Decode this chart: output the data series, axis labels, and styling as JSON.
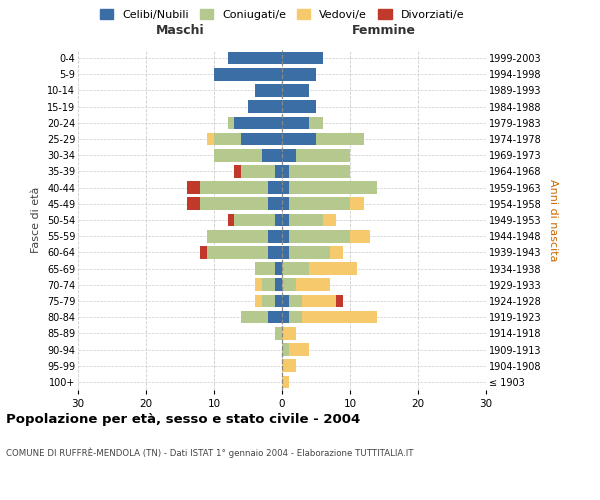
{
  "age_groups": [
    "100+",
    "95-99",
    "90-94",
    "85-89",
    "80-84",
    "75-79",
    "70-74",
    "65-69",
    "60-64",
    "55-59",
    "50-54",
    "45-49",
    "40-44",
    "35-39",
    "30-34",
    "25-29",
    "20-24",
    "15-19",
    "10-14",
    "5-9",
    "0-4"
  ],
  "birth_years": [
    "≤ 1903",
    "1904-1908",
    "1909-1913",
    "1914-1918",
    "1919-1923",
    "1924-1928",
    "1929-1933",
    "1934-1938",
    "1939-1943",
    "1944-1948",
    "1949-1953",
    "1954-1958",
    "1959-1963",
    "1964-1968",
    "1969-1973",
    "1974-1978",
    "1979-1983",
    "1984-1988",
    "1989-1993",
    "1994-1998",
    "1999-2003"
  ],
  "colors": {
    "celibe": "#3a6ea5",
    "coniugato": "#b5c98e",
    "vedovo": "#f5c96c",
    "divorziato": "#c0392b"
  },
  "maschi": {
    "celibe": [
      0,
      0,
      0,
      0,
      2,
      1,
      1,
      1,
      2,
      2,
      1,
      2,
      2,
      1,
      3,
      6,
      7,
      5,
      4,
      10,
      8
    ],
    "coniugato": [
      0,
      0,
      0,
      1,
      4,
      2,
      2,
      3,
      9,
      9,
      6,
      10,
      10,
      5,
      7,
      4,
      1,
      0,
      0,
      0,
      0
    ],
    "vedovo": [
      0,
      0,
      0,
      0,
      0,
      1,
      1,
      0,
      0,
      0,
      0,
      0,
      0,
      0,
      0,
      1,
      0,
      0,
      0,
      0,
      0
    ],
    "divorziato": [
      0,
      0,
      0,
      0,
      0,
      0,
      0,
      0,
      1,
      0,
      1,
      2,
      2,
      1,
      0,
      0,
      0,
      0,
      0,
      0,
      0
    ]
  },
  "femmine": {
    "celibe": [
      0,
      0,
      0,
      0,
      1,
      1,
      0,
      0,
      1,
      1,
      1,
      1,
      1,
      1,
      2,
      5,
      4,
      5,
      4,
      5,
      6
    ],
    "coniugato": [
      0,
      0,
      1,
      0,
      2,
      2,
      2,
      4,
      6,
      9,
      5,
      9,
      13,
      9,
      8,
      7,
      2,
      0,
      0,
      0,
      0
    ],
    "vedovo": [
      1,
      2,
      3,
      2,
      11,
      5,
      5,
      7,
      2,
      3,
      2,
      2,
      0,
      0,
      0,
      0,
      0,
      0,
      0,
      0,
      0
    ],
    "divorziato": [
      0,
      0,
      0,
      0,
      0,
      1,
      0,
      0,
      0,
      0,
      0,
      0,
      0,
      0,
      0,
      0,
      0,
      0,
      0,
      0,
      0
    ]
  },
  "xlim": 30,
  "title": "Popolazione per età, sesso e stato civile - 2004",
  "subtitle": "COMUNE DI RUFFRÈ-MENDOLA (TN) - Dati ISTAT 1° gennaio 2004 - Elaborazione TUTTITALIA.IT",
  "ylabel_left": "Fasce di età",
  "ylabel_right": "Anni di nascita",
  "xlabel_left": "Maschi",
  "xlabel_right": "Femmine",
  "legend_labels": [
    "Celibi/Nubili",
    "Coniugati/e",
    "Vedovi/e",
    "Divorziati/e"
  ],
  "bg_color": "#ffffff",
  "grid_color": "#cccccc",
  "bar_height": 0.78
}
